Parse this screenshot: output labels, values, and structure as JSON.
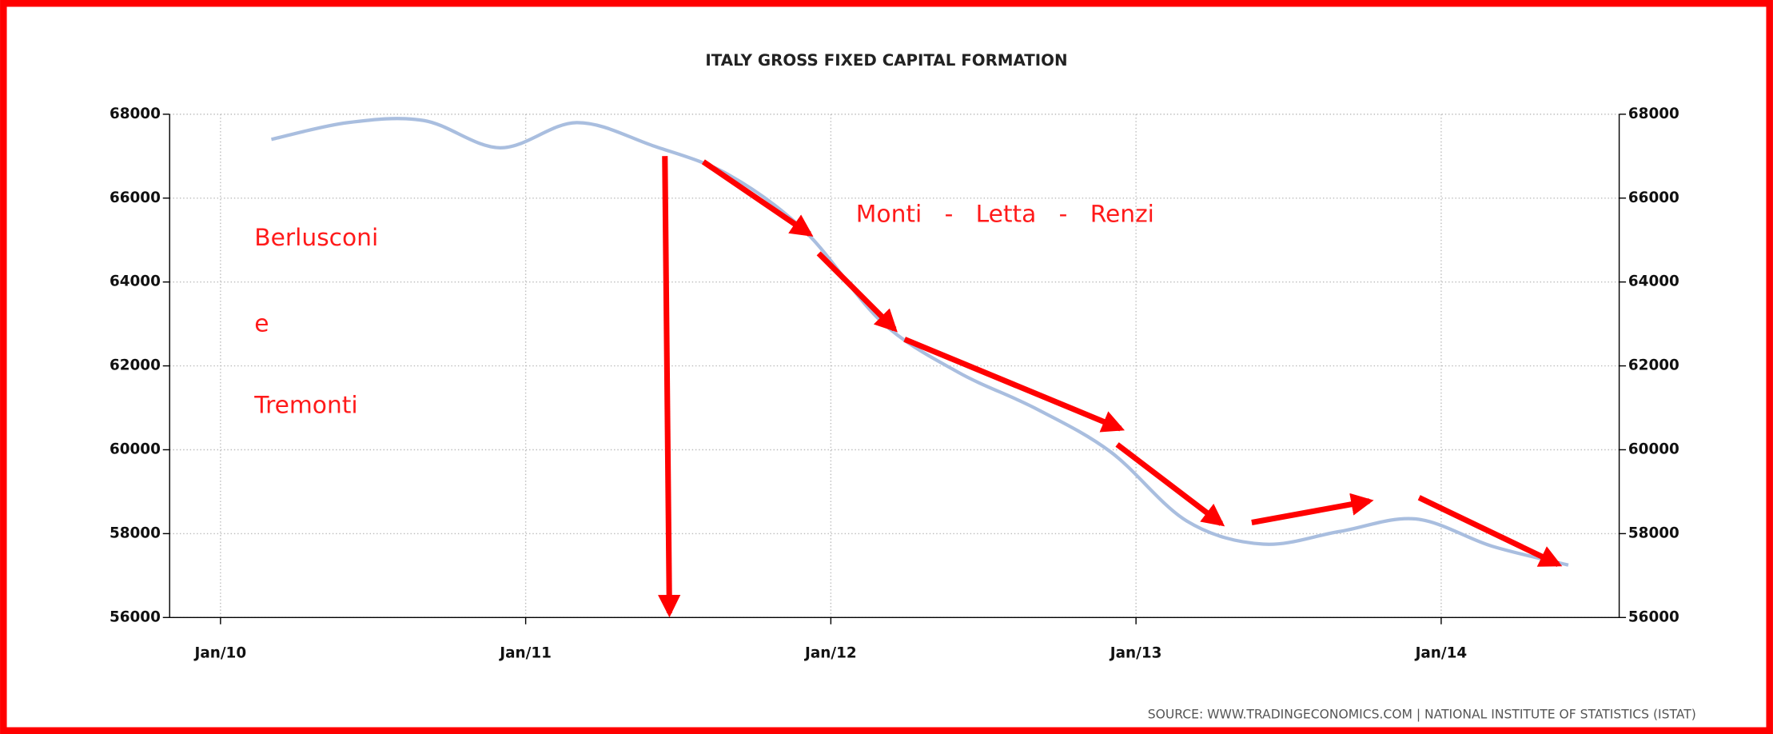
{
  "chart_data": {
    "type": "line",
    "title": "ITALY GROSS FIXED CAPITAL FORMATION",
    "source": "SOURCE:  WWW.TRADINGECONOMICS.COM  |  NATIONAL  INSTITUTE  OF  STATISTICS  (ISTAT)",
    "x": [
      "2010-03",
      "2010-06",
      "2010-09",
      "2010-12",
      "2011-03",
      "2011-06",
      "2011-09",
      "2011-12",
      "2012-03",
      "2012-06",
      "2012-09",
      "2012-12",
      "2013-03",
      "2013-06",
      "2013-09",
      "2013-12",
      "2014-03",
      "2014-06"
    ],
    "series": [
      {
        "color": "#a9bedf",
        "values": [
          67400,
          67800,
          67850,
          67200,
          67800,
          67250,
          66550,
          65200,
          63050,
          61850,
          61000,
          59950,
          58300,
          57750,
          58050,
          58350,
          57700,
          57250
        ]
      }
    ],
    "xlim": [
      "2009-11",
      "2014-08"
    ],
    "xticks": [
      {
        "value": "2010-01",
        "label": "Jan/10"
      },
      {
        "value": "2011-01",
        "label": "Jan/11"
      },
      {
        "value": "2012-01",
        "label": "Jan/12"
      },
      {
        "value": "2013-01",
        "label": "Jan/13"
      },
      {
        "value": "2014-01",
        "label": "Jan/14"
      }
    ],
    "ylim": [
      56000,
      68000
    ],
    "yticks": [
      56000,
      58000,
      60000,
      62000,
      64000,
      66000,
      68000
    ],
    "y2lim": [
      56000,
      68000
    ],
    "y2ticks": [
      56000,
      58000,
      60000,
      62000,
      64000,
      66000,
      68000
    ],
    "grid": true,
    "annotations": [
      "Berlusconi",
      "e",
      "Tremonti",
      "Monti   -   Letta   -   Renzi"
    ]
  }
}
